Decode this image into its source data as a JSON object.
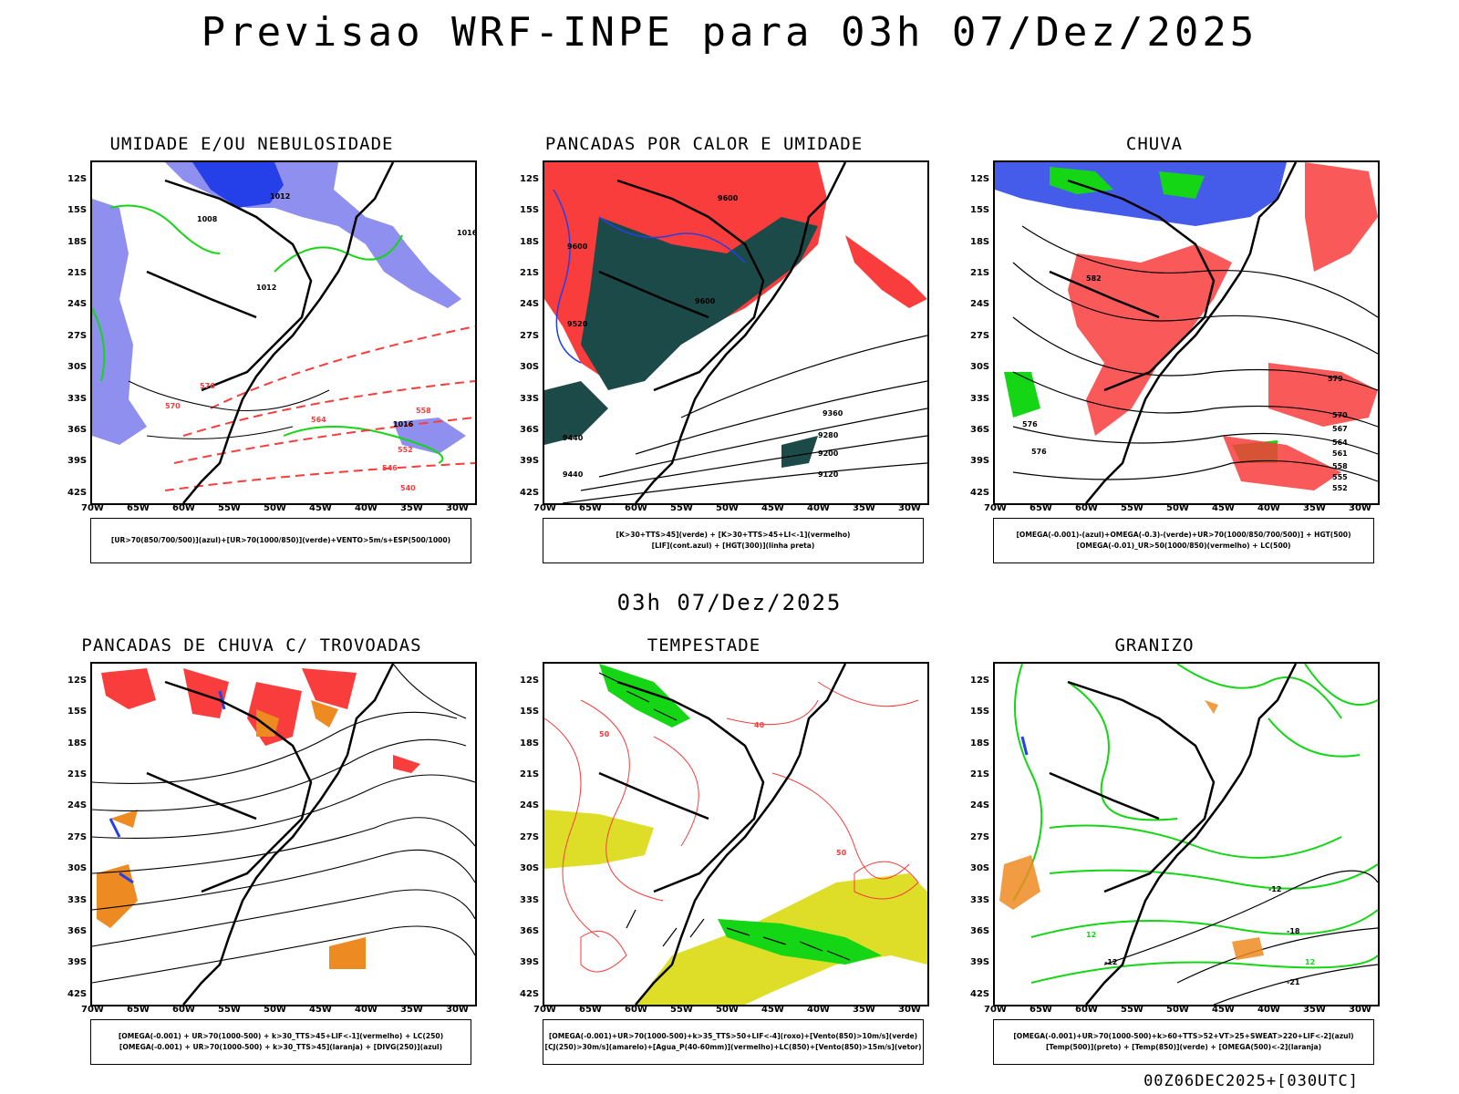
{
  "title": "Previsao WRF-INPE  para 03h 07/Dez/2025",
  "mid_title": "03h 07/Dez/2025",
  "footer": "00Z06DEC2025+[030UTC]",
  "lat_labels": [
    "12S",
    "15S",
    "18S",
    "21S",
    "24S",
    "27S",
    "30S",
    "33S",
    "36S",
    "39S",
    "42S"
  ],
  "lon_labels": [
    "70W",
    "65W",
    "60W",
    "55W",
    "50W",
    "45W",
    "40W",
    "35W",
    "30W"
  ],
  "panels": [
    {
      "title": "UMIDADE E/OU NEBULOSIDADE",
      "legend": [
        "[UR>70(850/700/500)](azul)+[UR>70(1000/850)](verde)+VENTO>5m/s+ESP(500/1000)"
      ],
      "labels": [
        {
          "t": "1012"
        },
        {
          "t": "1008"
        },
        {
          "t": "1016"
        },
        {
          "t": "1012"
        },
        {
          "t": "1016"
        },
        {
          "t": "576"
        },
        {
          "t": "570"
        },
        {
          "t": "564"
        },
        {
          "t": "558"
        },
        {
          "t": "552"
        },
        {
          "t": "546"
        },
        {
          "t": "540"
        }
      ]
    },
    {
      "title": "PANCADAS POR CALOR E UMIDADE",
      "legend": [
        "[K>30+TTS>45](verde) + [K>30+TTS>45+LI<-1](vermelho)",
        "[LIF](cont.azul) + [HGT(300)](linha preta)"
      ],
      "labels": [
        {
          "t": "9600"
        },
        {
          "t": "9600"
        },
        {
          "t": "9520"
        },
        {
          "t": "9600"
        },
        {
          "t": "9440"
        },
        {
          "t": "9360"
        },
        {
          "t": "9280"
        },
        {
          "t": "9200"
        },
        {
          "t": "9120"
        },
        {
          "t": "9440"
        }
      ]
    },
    {
      "title": "CHUVA",
      "legend": [
        "[OMEGA(-0.001)-(azul)+OMEGA(-0.3)-(verde)+UR>70(1000/850/700/500)] + HGT(500)",
        "[OMEGA(-0.01)_UR>50(1000/850)(vermelho) + LC(500)"
      ],
      "labels": [
        {
          "t": "582"
        },
        {
          "t": "579"
        },
        {
          "t": "576"
        },
        {
          "t": "570"
        },
        {
          "t": "567"
        },
        {
          "t": "564"
        },
        {
          "t": "561"
        },
        {
          "t": "558"
        },
        {
          "t": "555"
        },
        {
          "t": "552"
        },
        {
          "t": "576"
        }
      ]
    },
    {
      "title": "PANCADAS DE CHUVA C/ TROVOADAS",
      "legend": [
        "[OMEGA(-0.001) + UR>70(1000-500) + k>30_TTS>45+LIF<-1](vermelho) + LC(250)",
        "[OMEGA(-0.001) + UR>70(1000-500) + k>30_TTS>45](laranja) + [DIVG(250)](azul)"
      ],
      "labels": []
    },
    {
      "title": "TEMPESTADE",
      "legend": [
        "[OMEGA(-0.001)+UR>70(1000-500)+k>35_TTS>50+LIF<-4](roxo)+[Vento(850)>10m/s](verde)",
        "[CJ(250)>30m/s](amarelo)+[Agua_P(40-60mm)](vermelho)+LC(850)+[Vento(850)>15m/s](vetor)"
      ],
      "labels": [
        {
          "t": "50"
        },
        {
          "t": "40"
        },
        {
          "t": "50"
        }
      ]
    },
    {
      "title": "GRANIZO",
      "legend": [
        "[OMEGA(-0.001)+UR>70(1000-500)+k>60+TTS>52+VT>25+SWEAT>220+LIF<-2](azul)",
        "[Temp(500)](preto) + [Temp(850)](verde) + [OMEGA(500)<-2](laranja)"
      ],
      "labels": [
        {
          "t": "-12"
        },
        {
          "t": "-18"
        },
        {
          "t": "-12"
        },
        {
          "t": "-21"
        },
        {
          "t": "12"
        },
        {
          "t": "12"
        }
      ]
    }
  ],
  "colors": {
    "red": "#f93c3c",
    "blue": "#2540e8",
    "green": "#15d615",
    "lavender": "#8f8ff0",
    "darkteal": "#1c4a48",
    "yellow": "#dede28",
    "orange": "#ee8a22",
    "black": "#000000"
  }
}
